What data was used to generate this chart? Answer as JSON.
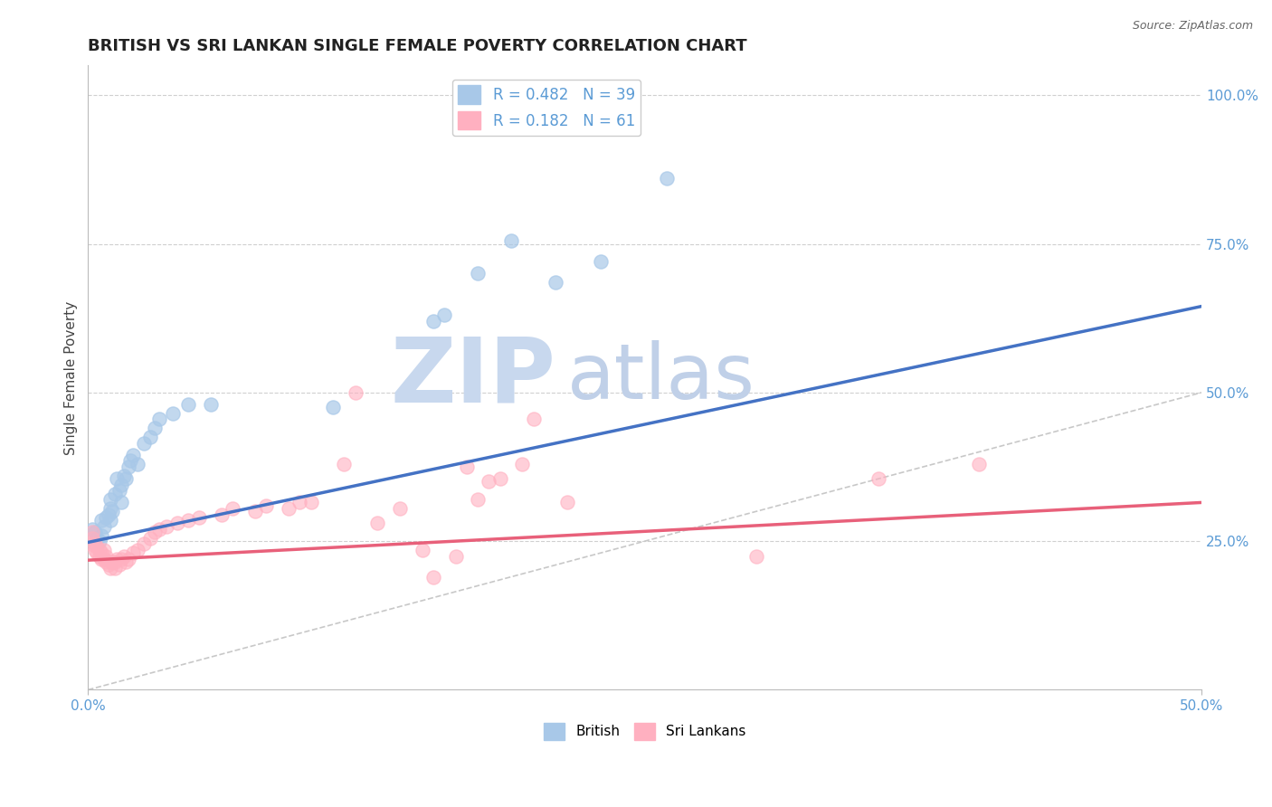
{
  "title": "BRITISH VS SRI LANKAN SINGLE FEMALE POVERTY CORRELATION CHART",
  "source": "Source: ZipAtlas.com",
  "ylabel": "Single Female Poverty",
  "right_yticks": [
    "100.0%",
    "75.0%",
    "50.0%",
    "25.0%"
  ],
  "right_ytick_vals": [
    1.0,
    0.75,
    0.5,
    0.25
  ],
  "xlim": [
    0.0,
    0.5
  ],
  "ylim": [
    0.0,
    1.05
  ],
  "legend_british": "R = 0.482   N = 39",
  "legend_srilankans": "R = 0.182   N = 61",
  "british_color": "#a8c8e8",
  "srilankans_color": "#ffb0c0",
  "british_line_color": "#4472c4",
  "srilankans_line_color": "#e8607a",
  "diagonal_color": "#c8c8c8",
  "british_points": [
    [
      0.002,
      0.27
    ],
    [
      0.003,
      0.265
    ],
    [
      0.004,
      0.255
    ],
    [
      0.005,
      0.25
    ],
    [
      0.006,
      0.26
    ],
    [
      0.006,
      0.285
    ],
    [
      0.007,
      0.275
    ],
    [
      0.008,
      0.29
    ],
    [
      0.009,
      0.295
    ],
    [
      0.01,
      0.285
    ],
    [
      0.01,
      0.305
    ],
    [
      0.01,
      0.32
    ],
    [
      0.011,
      0.3
    ],
    [
      0.012,
      0.33
    ],
    [
      0.013,
      0.355
    ],
    [
      0.014,
      0.335
    ],
    [
      0.015,
      0.315
    ],
    [
      0.015,
      0.345
    ],
    [
      0.016,
      0.36
    ],
    [
      0.017,
      0.355
    ],
    [
      0.018,
      0.375
    ],
    [
      0.019,
      0.385
    ],
    [
      0.02,
      0.395
    ],
    [
      0.022,
      0.38
    ],
    [
      0.025,
      0.415
    ],
    [
      0.028,
      0.425
    ],
    [
      0.03,
      0.44
    ],
    [
      0.032,
      0.455
    ],
    [
      0.038,
      0.465
    ],
    [
      0.045,
      0.48
    ],
    [
      0.055,
      0.48
    ],
    [
      0.11,
      0.475
    ],
    [
      0.155,
      0.62
    ],
    [
      0.16,
      0.63
    ],
    [
      0.175,
      0.7
    ],
    [
      0.19,
      0.755
    ],
    [
      0.21,
      0.685
    ],
    [
      0.23,
      0.72
    ],
    [
      0.26,
      0.86
    ]
  ],
  "srilankans_points": [
    [
      0.001,
      0.245
    ],
    [
      0.002,
      0.255
    ],
    [
      0.002,
      0.265
    ],
    [
      0.003,
      0.235
    ],
    [
      0.003,
      0.245
    ],
    [
      0.004,
      0.23
    ],
    [
      0.004,
      0.24
    ],
    [
      0.005,
      0.225
    ],
    [
      0.005,
      0.235
    ],
    [
      0.006,
      0.22
    ],
    [
      0.006,
      0.23
    ],
    [
      0.007,
      0.22
    ],
    [
      0.007,
      0.235
    ],
    [
      0.008,
      0.225
    ],
    [
      0.008,
      0.215
    ],
    [
      0.009,
      0.21
    ],
    [
      0.01,
      0.215
    ],
    [
      0.01,
      0.205
    ],
    [
      0.011,
      0.215
    ],
    [
      0.012,
      0.205
    ],
    [
      0.012,
      0.215
    ],
    [
      0.013,
      0.22
    ],
    [
      0.014,
      0.21
    ],
    [
      0.015,
      0.22
    ],
    [
      0.016,
      0.225
    ],
    [
      0.017,
      0.215
    ],
    [
      0.018,
      0.22
    ],
    [
      0.02,
      0.23
    ],
    [
      0.022,
      0.235
    ],
    [
      0.025,
      0.245
    ],
    [
      0.028,
      0.255
    ],
    [
      0.03,
      0.265
    ],
    [
      0.032,
      0.27
    ],
    [
      0.035,
      0.275
    ],
    [
      0.04,
      0.28
    ],
    [
      0.045,
      0.285
    ],
    [
      0.05,
      0.29
    ],
    [
      0.06,
      0.295
    ],
    [
      0.065,
      0.305
    ],
    [
      0.075,
      0.3
    ],
    [
      0.08,
      0.31
    ],
    [
      0.09,
      0.305
    ],
    [
      0.095,
      0.315
    ],
    [
      0.1,
      0.315
    ],
    [
      0.115,
      0.38
    ],
    [
      0.12,
      0.5
    ],
    [
      0.13,
      0.28
    ],
    [
      0.14,
      0.305
    ],
    [
      0.15,
      0.235
    ],
    [
      0.155,
      0.19
    ],
    [
      0.165,
      0.225
    ],
    [
      0.17,
      0.375
    ],
    [
      0.175,
      0.32
    ],
    [
      0.18,
      0.35
    ],
    [
      0.185,
      0.355
    ],
    [
      0.195,
      0.38
    ],
    [
      0.2,
      0.455
    ],
    [
      0.215,
      0.315
    ],
    [
      0.3,
      0.225
    ],
    [
      0.355,
      0.355
    ],
    [
      0.4,
      0.38
    ]
  ],
  "watermark_zip": "ZIP",
  "watermark_atlas": "atlas",
  "watermark_color_zip": "#c8d8ee",
  "watermark_color_atlas": "#c0d0e8",
  "watermark_fontsize": 72,
  "title_fontsize": 13,
  "axis_color": "#5b9bd5",
  "grid_color": "#d0d0d0",
  "legend_fontsize": 12,
  "label_fontsize": 11,
  "british_regression": [
    0.0,
    0.5,
    0.248,
    0.645
  ],
  "srilankans_regression": [
    0.0,
    0.5,
    0.218,
    0.315
  ]
}
